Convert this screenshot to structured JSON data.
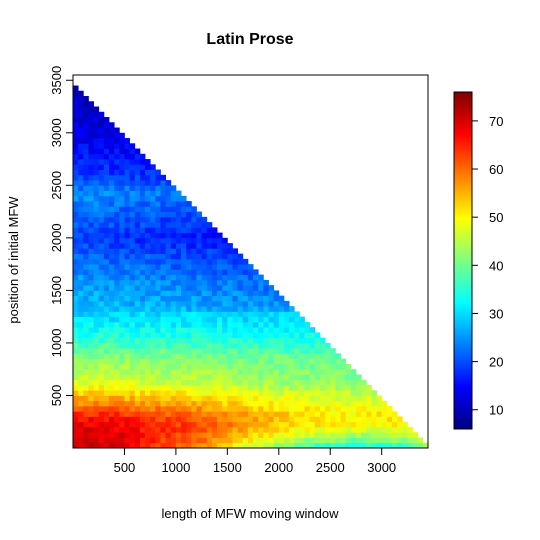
{
  "chart_data": {
    "type": "heatmap",
    "title": "Latin Prose",
    "xlabel": "length of MFW moving window",
    "ylabel": "position of initial MFW",
    "xlim": [
      0,
      3450
    ],
    "ylim": [
      0,
      3550
    ],
    "x_ticks": [
      500,
      1000,
      1500,
      2000,
      2500,
      3000
    ],
    "y_ticks": [
      500,
      1000,
      1500,
      2000,
      2500,
      3000,
      3500
    ],
    "colorbar": {
      "range": [
        6,
        76
      ],
      "ticks": [
        10,
        20,
        30,
        40,
        50,
        60,
        70
      ],
      "colors": [
        "#00007F",
        "#0000FF",
        "#007FFF",
        "#00FFFF",
        "#7FFF7F",
        "#FFFF00",
        "#FF7F00",
        "#FF0000",
        "#7F0000"
      ]
    },
    "grid": {
      "x_start": 0,
      "x_step": 50,
      "y_start": 0,
      "y_step": 50,
      "constraint": "x + y <= 3450"
    },
    "value_profile": {
      "description": "approximate z (percent) as function of position y along left edge (x near 0) and window x",
      "by_y_at_left": [
        [
          50,
          70
        ],
        [
          250,
          66
        ],
        [
          450,
          52
        ],
        [
          650,
          43
        ],
        [
          850,
          40
        ],
        [
          1000,
          35
        ],
        [
          1200,
          30
        ],
        [
          1400,
          27
        ],
        [
          1600,
          25
        ],
        [
          1800,
          22
        ],
        [
          2000,
          19
        ],
        [
          2200,
          22
        ],
        [
          2400,
          25
        ],
        [
          2600,
          19
        ],
        [
          2800,
          16
        ],
        [
          3000,
          13
        ],
        [
          3200,
          12
        ],
        [
          3400,
          10
        ]
      ],
      "by_x_at_bottom": [
        [
          0,
          70
        ],
        [
          400,
          70
        ],
        [
          800,
          63
        ],
        [
          1200,
          58
        ],
        [
          1600,
          48
        ],
        [
          2000,
          40
        ],
        [
          2400,
          34
        ],
        [
          2800,
          32
        ],
        [
          3200,
          34
        ],
        [
          3400,
          40
        ]
      ]
    }
  }
}
